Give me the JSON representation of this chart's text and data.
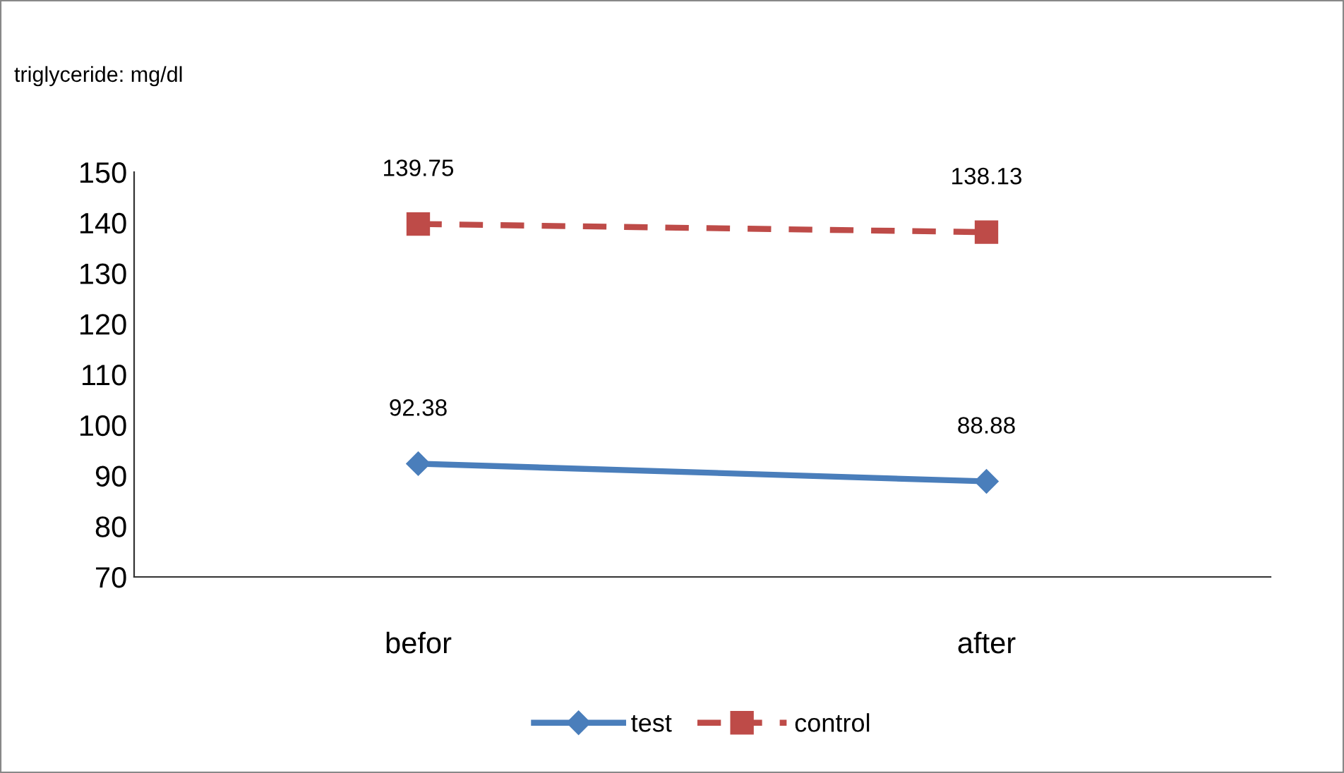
{
  "chart_data": {
    "type": "line",
    "ylabel": "triglyceride: mg/dl",
    "categories": [
      "befor",
      "after"
    ],
    "series": [
      {
        "name": "test",
        "color": "#4a7ebb",
        "values": [
          92.38,
          88.88
        ],
        "marker": "diamond",
        "line_style": "solid"
      },
      {
        "name": "control",
        "color": "#be4b48",
        "values": [
          139.75,
          138.13
        ],
        "marker": "square",
        "line_style": "dashed"
      }
    ],
    "ylim": [
      70,
      150
    ],
    "yticks": [
      70,
      80,
      90,
      100,
      110,
      120,
      130,
      140,
      150
    ],
    "data_labels": true,
    "legend": "bottom",
    "grid": false
  }
}
